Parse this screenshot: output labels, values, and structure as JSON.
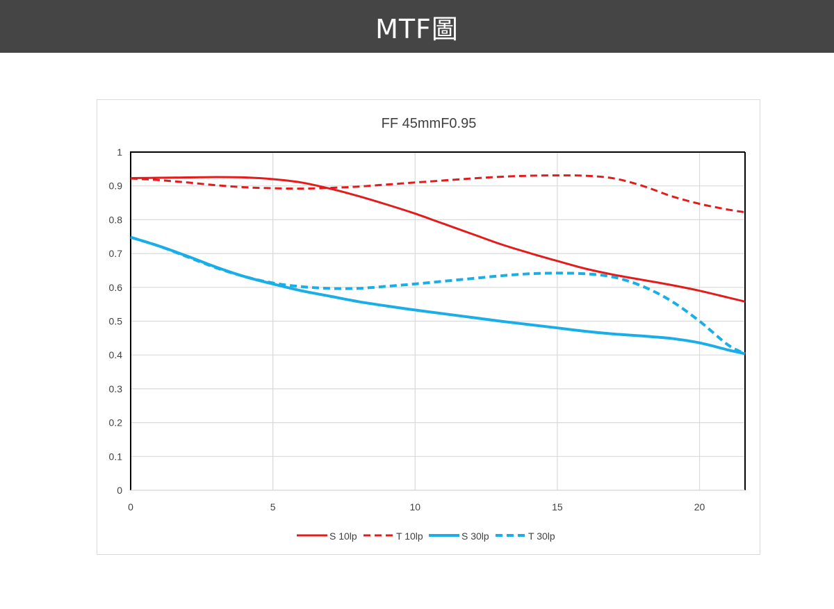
{
  "header": {
    "title": "MTF圖"
  },
  "chart_data": {
    "type": "line",
    "title": "FF 45mmF0.95",
    "xlabel": "",
    "ylabel": "",
    "xlim": [
      0,
      21.6
    ],
    "ylim": [
      0,
      1
    ],
    "x_ticks": [
      0,
      5,
      10,
      15,
      20
    ],
    "y_ticks": [
      0,
      0.1,
      0.2,
      0.3,
      0.4,
      0.5,
      0.6,
      0.7,
      0.8,
      0.9,
      1
    ],
    "grid": true,
    "legend": "bottom",
    "series": [
      {
        "name": "S 10lp",
        "color": "#e41b1b",
        "style": "solid",
        "points": [
          [
            0,
            0.923
          ],
          [
            1,
            0.924
          ],
          [
            2,
            0.925
          ],
          [
            3,
            0.926
          ],
          [
            4,
            0.925
          ],
          [
            5,
            0.92
          ],
          [
            6,
            0.91
          ],
          [
            7,
            0.892
          ],
          [
            8,
            0.87
          ],
          [
            9,
            0.845
          ],
          [
            10,
            0.818
          ],
          [
            11,
            0.788
          ],
          [
            12,
            0.758
          ],
          [
            13,
            0.728
          ],
          [
            14,
            0.702
          ],
          [
            15,
            0.678
          ],
          [
            16,
            0.655
          ],
          [
            17,
            0.637
          ],
          [
            18,
            0.622
          ],
          [
            19,
            0.607
          ],
          [
            20,
            0.59
          ],
          [
            21,
            0.57
          ],
          [
            21.6,
            0.558
          ]
        ]
      },
      {
        "name": "T 10lp",
        "color": "#e41b1b",
        "style": "dashed",
        "points": [
          [
            0,
            0.922
          ],
          [
            1,
            0.917
          ],
          [
            2,
            0.91
          ],
          [
            3,
            0.902
          ],
          [
            4,
            0.896
          ],
          [
            5,
            0.893
          ],
          [
            6,
            0.892
          ],
          [
            7,
            0.894
          ],
          [
            8,
            0.898
          ],
          [
            9,
            0.904
          ],
          [
            10,
            0.91
          ],
          [
            11,
            0.916
          ],
          [
            12,
            0.922
          ],
          [
            13,
            0.927
          ],
          [
            14,
            0.93
          ],
          [
            15,
            0.931
          ],
          [
            16,
            0.93
          ],
          [
            17,
            0.922
          ],
          [
            18,
            0.9
          ],
          [
            19,
            0.87
          ],
          [
            20,
            0.847
          ],
          [
            21,
            0.83
          ],
          [
            21.6,
            0.822
          ]
        ]
      },
      {
        "name": "S 30lp",
        "color": "#19aee8",
        "style": "solid",
        "points": [
          [
            0,
            0.748
          ],
          [
            1,
            0.722
          ],
          [
            2,
            0.692
          ],
          [
            3,
            0.66
          ],
          [
            4,
            0.632
          ],
          [
            5,
            0.61
          ],
          [
            6,
            0.59
          ],
          [
            7,
            0.574
          ],
          [
            8,
            0.558
          ],
          [
            9,
            0.545
          ],
          [
            10,
            0.533
          ],
          [
            11,
            0.522
          ],
          [
            12,
            0.511
          ],
          [
            13,
            0.5
          ],
          [
            14,
            0.49
          ],
          [
            15,
            0.48
          ],
          [
            16,
            0.47
          ],
          [
            17,
            0.462
          ],
          [
            18,
            0.456
          ],
          [
            19,
            0.449
          ],
          [
            20,
            0.436
          ],
          [
            21,
            0.415
          ],
          [
            21.6,
            0.404
          ]
        ]
      },
      {
        "name": "T 30lp",
        "color": "#19aee8",
        "style": "dashed",
        "points": [
          [
            0,
            0.748
          ],
          [
            1,
            0.722
          ],
          [
            2,
            0.69
          ],
          [
            3,
            0.658
          ],
          [
            4,
            0.632
          ],
          [
            5,
            0.613
          ],
          [
            6,
            0.602
          ],
          [
            7,
            0.597
          ],
          [
            8,
            0.597
          ],
          [
            9,
            0.603
          ],
          [
            10,
            0.61
          ],
          [
            11,
            0.618
          ],
          [
            12,
            0.626
          ],
          [
            13,
            0.634
          ],
          [
            14,
            0.64
          ],
          [
            15,
            0.642
          ],
          [
            16,
            0.64
          ],
          [
            17,
            0.63
          ],
          [
            18,
            0.603
          ],
          [
            19,
            0.56
          ],
          [
            20,
            0.5
          ],
          [
            21,
            0.43
          ],
          [
            21.6,
            0.404
          ]
        ]
      }
    ]
  }
}
